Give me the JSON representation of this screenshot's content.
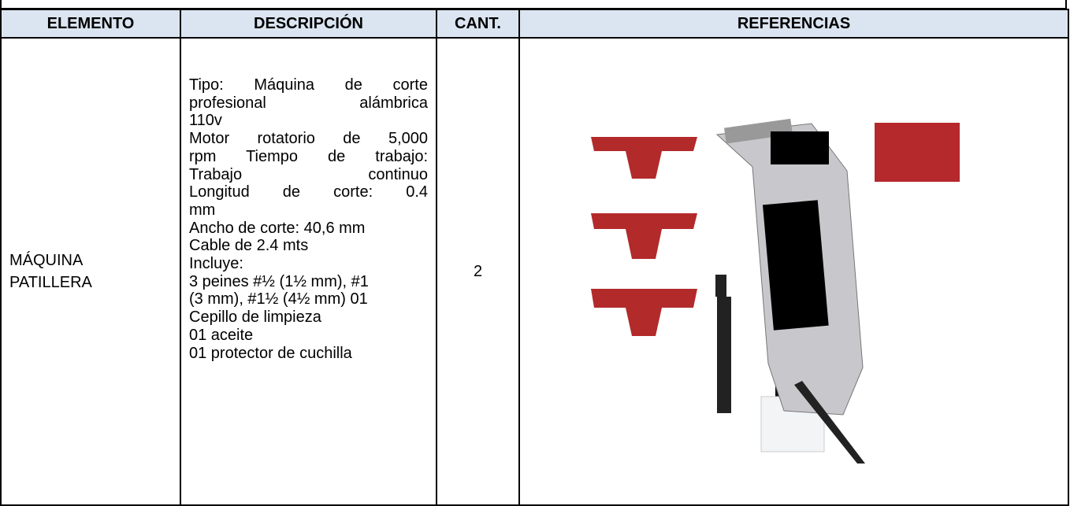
{
  "table": {
    "headers": [
      "ELEMENTO",
      "DESCRIPCIÓN",
      "CANT.",
      "REFERENCIAS"
    ],
    "rows": [
      {
        "element": "MÁQUINA PATILLERA",
        "description": [
          "Tipo: Máquina de corte",
          "profesional alámbrica",
          "110v",
          "Motor rotatorio de 5,000",
          "rpm Tiempo de trabajo:",
          "Trabajo continuo",
          "Longitud de corte: 0.4",
          "mm",
          "Ancho de corte: 40,6 mm",
          "Cable de 2.4 mts",
          "Incluye:",
          "3 peines #½ (1½ mm), #1",
          "(3 mm), #1½ (4½ mm) 01",
          "Cepillo de limpieza",
          "01 aceite",
          "01 protector de cuchilla"
        ],
        "quantity": "2"
      }
    ]
  }
}
